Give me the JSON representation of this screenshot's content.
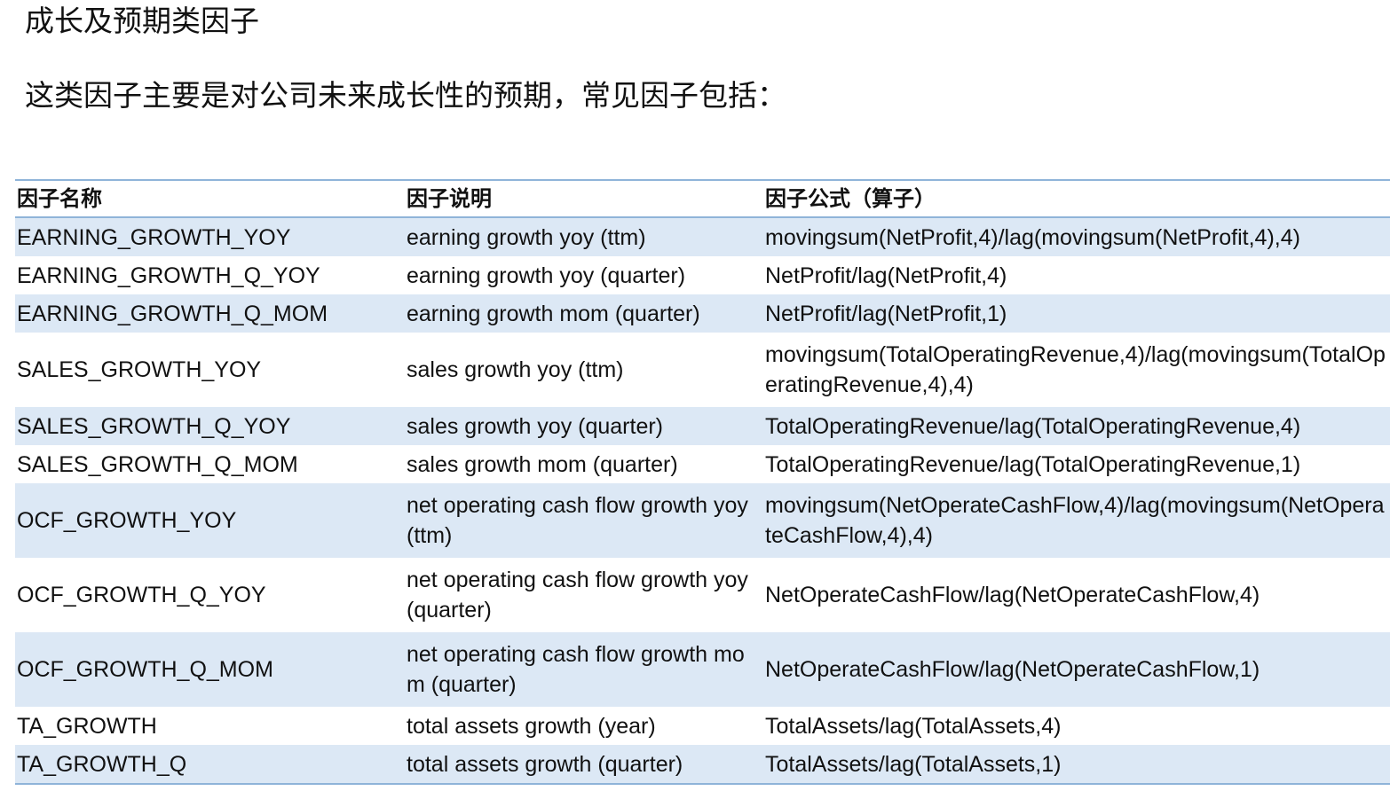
{
  "heading": "成长及预期类因子",
  "intro": "这类因子主要是对公司未来成长性的预期，常见因子包括：",
  "table": {
    "headers": [
      "因子名称",
      "因子说明",
      "因子公式（算子）"
    ],
    "rows": [
      {
        "name": "EARNING_GROWTH_YOY",
        "desc": "earning growth yoy (ttm)",
        "formula": "movingsum(NetProfit,4)/lag(movingsum(NetProfit,4),4)"
      },
      {
        "name": "EARNING_GROWTH_Q_YOY",
        "desc": "earning growth yoy (quarter)",
        "formula": "NetProfit/lag(NetProfit,4)"
      },
      {
        "name": "EARNING_GROWTH_Q_MOM",
        "desc": "earning growth mom (quarter)",
        "formula": "NetProfit/lag(NetProfit,1)"
      },
      {
        "name": "SALES_GROWTH_YOY",
        "desc": "sales growth yoy (ttm)",
        "formula": "movingsum(TotalOperatingRevenue,4)/lag(movingsum(TotalOperatingRevenue,4),4)"
      },
      {
        "name": "SALES_GROWTH_Q_YOY",
        "desc": "sales growth yoy (quarter)",
        "formula": "TotalOperatingRevenue/lag(TotalOperatingRevenue,4)"
      },
      {
        "name": "SALES_GROWTH_Q_MOM",
        "desc": "sales growth mom (quarter)",
        "formula": "TotalOperatingRevenue/lag(TotalOperatingRevenue,1)"
      },
      {
        "name": "OCF_GROWTH_YOY",
        "desc": "net operating cash flow growth yoy (ttm)",
        "formula": "movingsum(NetOperateCashFlow,4)/lag(movingsum(NetOperateCashFlow,4),4)"
      },
      {
        "name": "OCF_GROWTH_Q_YOY",
        "desc": "net operating cash flow growth yoy (quarter)",
        "formula": "NetOperateCashFlow/lag(NetOperateCashFlow,4)"
      },
      {
        "name": "OCF_GROWTH_Q_MOM",
        "desc": "net operating cash flow growth mom (quarter)",
        "formula": "NetOperateCashFlow/lag(NetOperateCashFlow,1)"
      },
      {
        "name": "TA_GROWTH",
        "desc": "total assets growth (year)",
        "formula": "TotalAssets/lag(TotalAssets,4)"
      },
      {
        "name": "TA_GROWTH_Q",
        "desc": "total assets growth (quarter)",
        "formula": "TotalAssets/lag(TotalAssets,1)"
      }
    ]
  }
}
